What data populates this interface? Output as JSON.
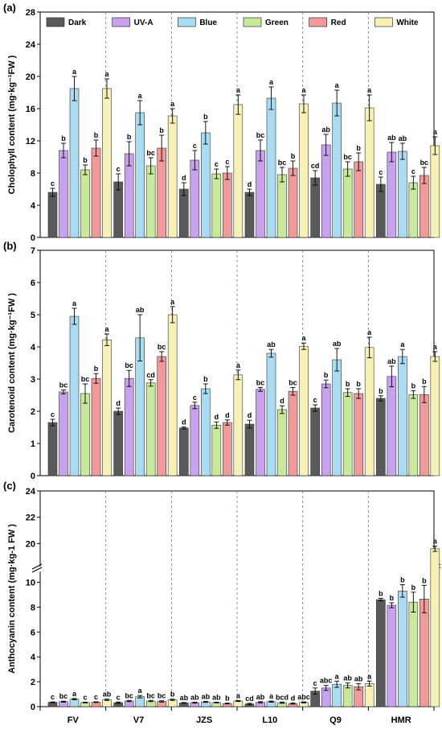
{
  "categories": [
    "FV",
    "V7",
    "JZS",
    "L10",
    "Q9",
    "HMR"
  ],
  "legend": {
    "entries": [
      {
        "name": "Dark",
        "color": "#5a5a5a"
      },
      {
        "name": "UV-A",
        "color": "#c9a2ef"
      },
      {
        "name": "Blue",
        "color": "#a9dcf2"
      },
      {
        "name": "Green",
        "color": "#c9e99a"
      },
      {
        "name": "Red",
        "color": "#f29a9a"
      },
      {
        "name": "White",
        "color": "#f7f1b5"
      }
    ],
    "placement": "top, inside panel (a)"
  },
  "chart_data": [
    {
      "type": "bar",
      "panel_label": "(a)",
      "ylabel": "Cholophyll content (mg·kg⁻¹FW )",
      "ylim": [
        0,
        28
      ],
      "yticks": [
        0,
        4,
        8,
        12,
        16,
        20,
        24,
        28
      ],
      "categories": [
        "FV",
        "V7",
        "JZS",
        "L10",
        "Q9",
        "HMR"
      ],
      "series": [
        {
          "name": "Dark",
          "values": [
            5.6,
            6.9,
            6.0,
            5.6,
            7.4,
            6.6
          ],
          "errors": [
            0.5,
            1.0,
            0.8,
            0.4,
            0.9,
            0.9
          ],
          "labels": [
            "c",
            "c",
            "d",
            "d",
            "cd",
            "c"
          ]
        },
        {
          "name": "UV-A",
          "values": [
            10.8,
            10.4,
            9.6,
            10.8,
            11.5,
            10.6
          ],
          "errors": [
            0.9,
            1.5,
            1.2,
            1.3,
            1.3,
            1.2
          ],
          "labels": [
            "b",
            "b",
            "c",
            "bc",
            "ab",
            "ab"
          ]
        },
        {
          "name": "Blue",
          "values": [
            18.5,
            15.5,
            13.0,
            17.3,
            16.7,
            10.7
          ],
          "errors": [
            1.5,
            1.5,
            1.4,
            1.4,
            1.6,
            1.0
          ],
          "labels": [
            "a",
            "a",
            "b",
            "a",
            "a",
            "ab"
          ]
        },
        {
          "name": "Green",
          "values": [
            8.4,
            8.9,
            7.9,
            7.8,
            8.5,
            6.8
          ],
          "errors": [
            0.6,
            1.0,
            0.6,
            0.9,
            0.9,
            0.8
          ],
          "labels": [
            "b",
            "bc",
            "c",
            "bc",
            "bc",
            "c"
          ]
        },
        {
          "name": "Red",
          "values": [
            11.1,
            11.1,
            8.0,
            8.6,
            9.4,
            7.7
          ],
          "errors": [
            1.0,
            1.6,
            0.8,
            0.9,
            1.1,
            1.0
          ],
          "labels": [
            "b",
            "b",
            "c",
            "b",
            "b",
            "bc"
          ]
        },
        {
          "name": "White",
          "values": [
            18.5,
            15.1,
            16.5,
            16.6,
            16.1,
            11.4
          ],
          "errors": [
            1.2,
            0.9,
            1.2,
            1.1,
            1.6,
            1.1
          ],
          "labels": [
            "a",
            "a",
            "a",
            "a",
            "a",
            "a"
          ]
        }
      ]
    },
    {
      "type": "bar",
      "panel_label": "(b)",
      "ylabel": "Carotenoid content (mg·kg⁻¹FW )",
      "ylim": [
        0,
        7
      ],
      "yticks": [
        0,
        1,
        2,
        3,
        4,
        5,
        6,
        7
      ],
      "categories": [
        "FV",
        "V7",
        "JZS",
        "L10",
        "Q9",
        "HMR"
      ],
      "series": [
        {
          "name": "Dark",
          "values": [
            1.65,
            2.0,
            1.48,
            1.6,
            2.1,
            2.4
          ],
          "errors": [
            0.1,
            0.1,
            0.03,
            0.12,
            0.1,
            0.08
          ],
          "labels": [
            "c",
            "d",
            "d",
            "d",
            "c",
            "b"
          ]
        },
        {
          "name": "UV-A",
          "values": [
            2.6,
            3.02,
            2.18,
            2.68,
            2.85,
            3.08
          ],
          "errors": [
            0.06,
            0.25,
            0.1,
            0.06,
            0.12,
            0.32
          ],
          "labels": [
            "bc",
            "bc",
            "c",
            "bc",
            "b",
            "ab"
          ]
        },
        {
          "name": "Blue",
          "values": [
            4.95,
            4.28,
            2.7,
            3.8,
            3.6,
            3.7
          ],
          "errors": [
            0.25,
            0.72,
            0.15,
            0.12,
            0.35,
            0.22
          ],
          "labels": [
            "a",
            "ab",
            "b",
            "ab",
            "ab",
            "a"
          ]
        },
        {
          "name": "Green",
          "values": [
            2.55,
            2.88,
            1.57,
            2.05,
            2.58,
            2.52
          ],
          "errors": [
            0.3,
            0.1,
            0.1,
            0.12,
            0.12,
            0.12
          ],
          "labels": [
            "bc",
            "cd",
            "d",
            "d",
            "b",
            "b"
          ]
        },
        {
          "name": "Red",
          "values": [
            3.02,
            3.7,
            1.65,
            2.62,
            2.55,
            2.52
          ],
          "errors": [
            0.15,
            0.15,
            0.08,
            0.12,
            0.15,
            0.25
          ],
          "labels": [
            "b",
            "bc",
            "d",
            "bc",
            "b",
            "b"
          ]
        },
        {
          "name": "White",
          "values": [
            4.22,
            5.0,
            3.13,
            4.02,
            3.98,
            3.7
          ],
          "errors": [
            0.18,
            0.25,
            0.15,
            0.1,
            0.32,
            0.15
          ],
          "labels": [
            "a",
            "a",
            "a",
            "a",
            "a",
            "a"
          ]
        }
      ]
    },
    {
      "type": "bar",
      "panel_label": "(c)",
      "ylabel": "Anthocyanin content (mg·kg-1 FW )",
      "ylim": [
        0,
        24
      ],
      "axis_break": [
        11,
        18
      ],
      "yticks": [
        0,
        2,
        4,
        6,
        8,
        10,
        20,
        22,
        24
      ],
      "categories": [
        "FV",
        "V7",
        "JZS",
        "L10",
        "Q9",
        "HMR"
      ],
      "series": [
        {
          "name": "Dark",
          "values": [
            0.35,
            0.32,
            0.3,
            0.22,
            1.25,
            8.6
          ],
          "errors": [
            0.03,
            0.05,
            0.03,
            0.05,
            0.25,
            0.1
          ],
          "labels": [
            "c",
            "c",
            "ab",
            "cd",
            "c",
            "b"
          ]
        },
        {
          "name": "UV-A",
          "values": [
            0.4,
            0.45,
            0.32,
            0.35,
            1.5,
            8.15
          ],
          "errors": [
            0.04,
            0.05,
            0.04,
            0.05,
            0.2,
            0.2
          ],
          "labels": [
            "bc",
            "bc",
            "ab",
            "ab",
            "abc",
            "b"
          ]
        },
        {
          "name": "Blue",
          "values": [
            0.6,
            0.8,
            0.38,
            0.4,
            1.8,
            9.3
          ],
          "errors": [
            0.05,
            0.1,
            0.04,
            0.05,
            0.25,
            0.5
          ],
          "labels": [
            "a",
            "a",
            "ab",
            "a",
            "a",
            "b"
          ]
        },
        {
          "name": "Green",
          "values": [
            0.33,
            0.45,
            0.33,
            0.32,
            1.7,
            8.4
          ],
          "errors": [
            0.03,
            0.05,
            0.03,
            0.05,
            0.2,
            0.8
          ],
          "labels": [
            "c",
            "bc",
            "ab",
            "bcd",
            "ab",
            "b"
          ]
        },
        {
          "name": "Red",
          "values": [
            0.36,
            0.42,
            0.25,
            0.25,
            1.6,
            8.65
          ],
          "errors": [
            0.03,
            0.05,
            0.03,
            0.05,
            0.25,
            1.1
          ],
          "labels": [
            "c",
            "bc",
            "b",
            "d",
            "ab",
            "b"
          ]
        },
        {
          "name": "White",
          "values": [
            0.55,
            0.55,
            0.45,
            0.34,
            1.85,
            19.6
          ],
          "errors": [
            0.05,
            0.05,
            0.04,
            0.04,
            0.2,
            0.2
          ],
          "labels": [
            "ab",
            "b",
            "a",
            "abc",
            "a",
            "a"
          ]
        }
      ]
    }
  ]
}
